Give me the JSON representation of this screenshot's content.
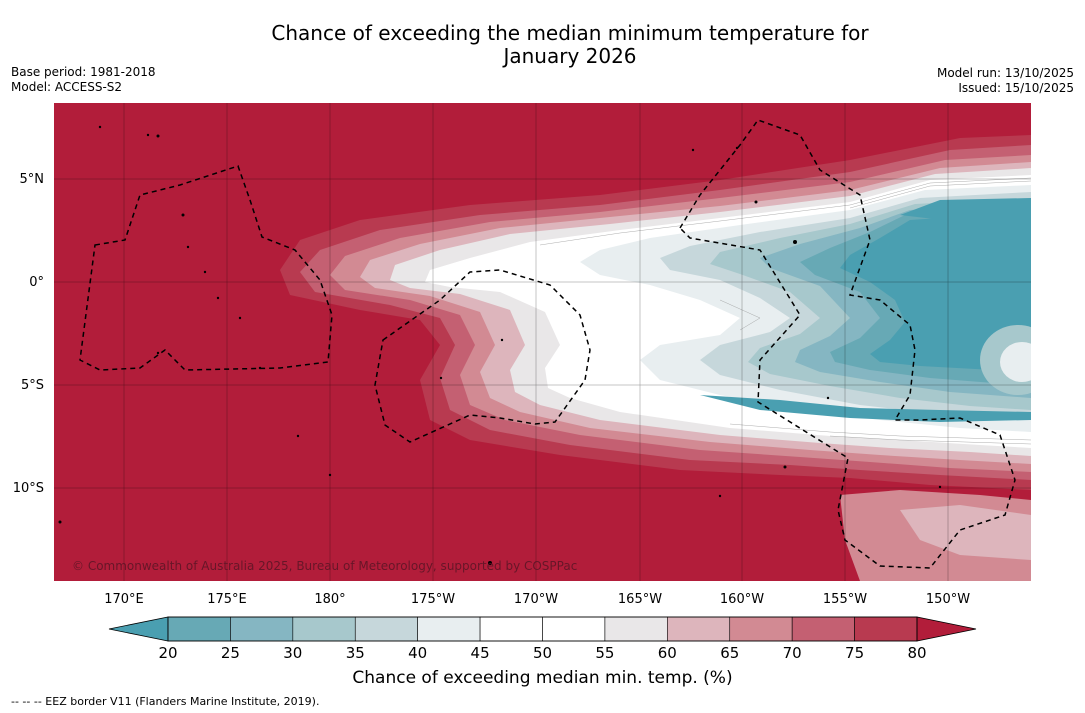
{
  "header": {
    "title_line1": "Chance of exceeding the median minimum temperature for",
    "title_line2": "January 2026",
    "base_period": "Base period: 1981-2018",
    "model": "Model: ACCESS-S2",
    "model_run": "Model run: 13/10/2025",
    "issued": "Issued: 15/10/2025"
  },
  "map": {
    "lon_ticks": [
      "170°E",
      "175°E",
      "180°",
      "175°W",
      "170°W",
      "165°W",
      "160°W",
      "155°W",
      "150°W"
    ],
    "lat_ticks": [
      "5°N",
      "0°",
      "5°S",
      "10°S"
    ],
    "copyright": "© Commonwealth of Australia 2025, Bureau of Meteorology, supported by COSPPac"
  },
  "colorbar": {
    "ticks": [
      "20",
      "25",
      "30",
      "35",
      "40",
      "45",
      "50",
      "55",
      "60",
      "65",
      "70",
      "75",
      "80"
    ],
    "colors": [
      "#67a9b5",
      "#85b6c2",
      "#a7c8cc",
      "#c6d7db",
      "#e8eef0",
      "#ffffff",
      "#ffffff",
      "#e9e7e8",
      "#ddb5bc",
      "#d28a93",
      "#c46072",
      "#b83a50"
    ],
    "under_color": "#4a9fb1",
    "over_color": "#b21d3a",
    "label": "Chance of exceeding median min. temp. (%)"
  },
  "footnote": "--  --  -- EEZ border V11 (Flanders Marine Institute, 2019)."
}
